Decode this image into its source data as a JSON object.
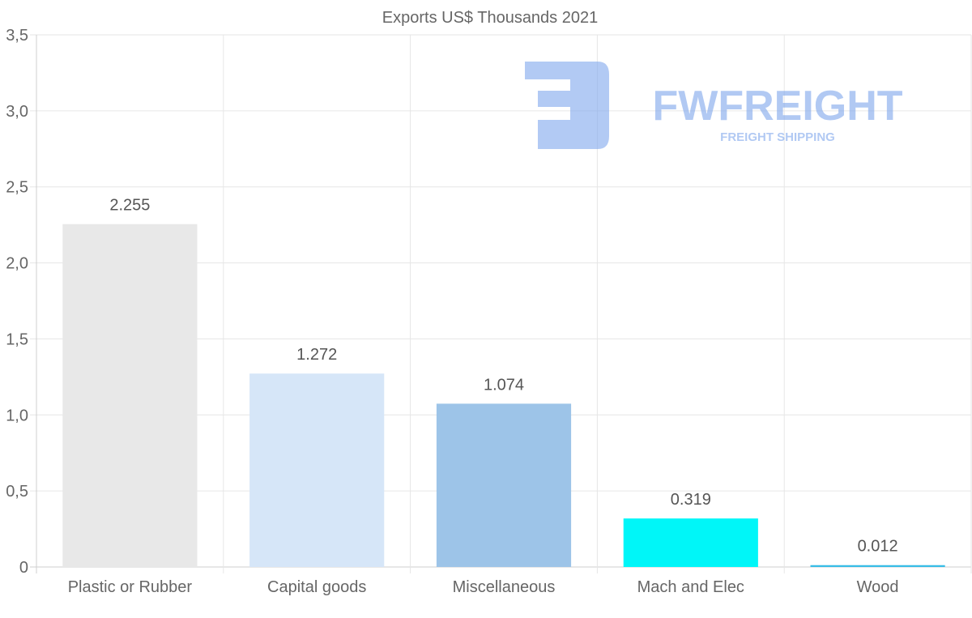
{
  "chart_data": {
    "type": "bar",
    "title": "Exports US$ Thousands 2021",
    "xlabel": "",
    "ylabel": "",
    "ylim": [
      0,
      3.5
    ],
    "yticks": [
      0,
      0.5,
      1.0,
      1.5,
      2.0,
      2.5,
      3.0,
      3.5
    ],
    "ytick_labels": [
      "0",
      "0,5",
      "1,0",
      "1,5",
      "2,0",
      "2,5",
      "3,0",
      "3,5"
    ],
    "categories": [
      "Plastic or Rubber",
      "Capital goods",
      "Miscellaneous",
      "Mach and Elec",
      "Wood"
    ],
    "values": [
      2.255,
      1.272,
      1.074,
      0.319,
      0.012
    ],
    "data_labels": [
      "2.255",
      "1.272",
      "1.074",
      "0.319",
      "0.012"
    ],
    "colors": [
      "#e8e8e8",
      "#d6e6f8",
      "#9dc4e8",
      "#00f6f8",
      "#38bde6"
    ],
    "grid": true,
    "legend": "none"
  },
  "watermark": {
    "brand": "FWFREIGHT",
    "tagline": "FREIGHT SHIPPING",
    "color": "#7ea6ec"
  }
}
